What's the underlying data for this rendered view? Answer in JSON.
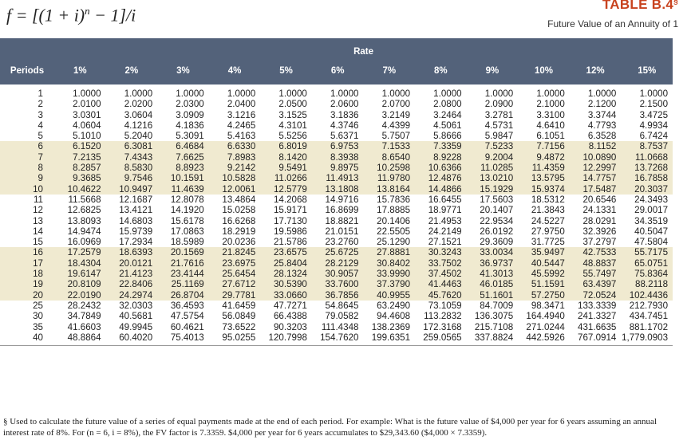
{
  "formula": {
    "before": "f = [(1 + i)",
    "exponent": "n",
    "after": " − 1]/i"
  },
  "header": {
    "title": "TABLE B.4",
    "title_mark": "§",
    "subtitle": "Future Value of an Annuity of 1"
  },
  "table": {
    "group_label": "Rate",
    "columns": [
      "Periods",
      "1%",
      "2%",
      "3%",
      "4%",
      "5%",
      "6%",
      "7%",
      "8%",
      "9%",
      "10%",
      "12%",
      "15%"
    ],
    "rows": [
      [
        "1",
        "1.0000",
        "1.0000",
        "1.0000",
        "1.0000",
        "1.0000",
        "1.0000",
        "1.0000",
        "1.0000",
        "1.0000",
        "1.0000",
        "1.0000",
        "1.0000"
      ],
      [
        "2",
        "2.0100",
        "2.0200",
        "2.0300",
        "2.0400",
        "2.0500",
        "2.0600",
        "2.0700",
        "2.0800",
        "2.0900",
        "2.1000",
        "2.1200",
        "2.1500"
      ],
      [
        "3",
        "3.0301",
        "3.0604",
        "3.0909",
        "3.1216",
        "3.1525",
        "3.1836",
        "3.2149",
        "3.2464",
        "3.2781",
        "3.3100",
        "3.3744",
        "3.4725"
      ],
      [
        "4",
        "4.0604",
        "4.1216",
        "4.1836",
        "4.2465",
        "4.3101",
        "4.3746",
        "4.4399",
        "4.5061",
        "4.5731",
        "4.6410",
        "4.7793",
        "4.9934"
      ],
      [
        "5",
        "5.1010",
        "5.2040",
        "5.3091",
        "5.4163",
        "5.5256",
        "5.6371",
        "5.7507",
        "5.8666",
        "5.9847",
        "6.1051",
        "6.3528",
        "6.7424"
      ],
      [
        "6",
        "6.1520",
        "6.3081",
        "6.4684",
        "6.6330",
        "6.8019",
        "6.9753",
        "7.1533",
        "7.3359",
        "7.5233",
        "7.7156",
        "8.1152",
        "8.7537"
      ],
      [
        "7",
        "7.2135",
        "7.4343",
        "7.6625",
        "7.8983",
        "8.1420",
        "8.3938",
        "8.6540",
        "8.9228",
        "9.2004",
        "9.4872",
        "10.0890",
        "11.0668"
      ],
      [
        "8",
        "8.2857",
        "8.5830",
        "8.8923",
        "9.2142",
        "9.5491",
        "9.8975",
        "10.2598",
        "10.6366",
        "11.0285",
        "11.4359",
        "12.2997",
        "13.7268"
      ],
      [
        "9",
        "9.3685",
        "9.7546",
        "10.1591",
        "10.5828",
        "11.0266",
        "11.4913",
        "11.9780",
        "12.4876",
        "13.0210",
        "13.5795",
        "14.7757",
        "16.7858"
      ],
      [
        "10",
        "10.4622",
        "10.9497",
        "11.4639",
        "12.0061",
        "12.5779",
        "13.1808",
        "13.8164",
        "14.4866",
        "15.1929",
        "15.9374",
        "17.5487",
        "20.3037"
      ],
      [
        "11",
        "11.5668",
        "12.1687",
        "12.8078",
        "13.4864",
        "14.2068",
        "14.9716",
        "15.7836",
        "16.6455",
        "17.5603",
        "18.5312",
        "20.6546",
        "24.3493"
      ],
      [
        "12",
        "12.6825",
        "13.4121",
        "14.1920",
        "15.0258",
        "15.9171",
        "16.8699",
        "17.8885",
        "18.9771",
        "20.1407",
        "21.3843",
        "24.1331",
        "29.0017"
      ],
      [
        "13",
        "13.8093",
        "14.6803",
        "15.6178",
        "16.6268",
        "17.7130",
        "18.8821",
        "20.1406",
        "21.4953",
        "22.9534",
        "24.5227",
        "28.0291",
        "34.3519"
      ],
      [
        "14",
        "14.9474",
        "15.9739",
        "17.0863",
        "18.2919",
        "19.5986",
        "21.0151",
        "22.5505",
        "24.2149",
        "26.0192",
        "27.9750",
        "32.3926",
        "40.5047"
      ],
      [
        "15",
        "16.0969",
        "17.2934",
        "18.5989",
        "20.0236",
        "21.5786",
        "23.2760",
        "25.1290",
        "27.1521",
        "29.3609",
        "31.7725",
        "37.2797",
        "47.5804"
      ],
      [
        "16",
        "17.2579",
        "18.6393",
        "20.1569",
        "21.8245",
        "23.6575",
        "25.6725",
        "27.8881",
        "30.3243",
        "33.0034",
        "35.9497",
        "42.7533",
        "55.7175"
      ],
      [
        "17",
        "18.4304",
        "20.0121",
        "21.7616",
        "23.6975",
        "25.8404",
        "28.2129",
        "30.8402",
        "33.7502",
        "36.9737",
        "40.5447",
        "48.8837",
        "65.0751"
      ],
      [
        "18",
        "19.6147",
        "21.4123",
        "23.4144",
        "25.6454",
        "28.1324",
        "30.9057",
        "33.9990",
        "37.4502",
        "41.3013",
        "45.5992",
        "55.7497",
        "75.8364"
      ],
      [
        "19",
        "20.8109",
        "22.8406",
        "25.1169",
        "27.6712",
        "30.5390",
        "33.7600",
        "37.3790",
        "41.4463",
        "46.0185",
        "51.1591",
        "63.4397",
        "88.2118"
      ],
      [
        "20",
        "22.0190",
        "24.2974",
        "26.8704",
        "29.7781",
        "33.0660",
        "36.7856",
        "40.9955",
        "45.7620",
        "51.1601",
        "57.2750",
        "72.0524",
        "102.4436"
      ],
      [
        "25",
        "28.2432",
        "32.0303",
        "36.4593",
        "41.6459",
        "47.7271",
        "54.8645",
        "63.2490",
        "73.1059",
        "84.7009",
        "98.3471",
        "133.3339",
        "212.7930"
      ],
      [
        "30",
        "34.7849",
        "40.5681",
        "47.5754",
        "56.0849",
        "66.4388",
        "79.0582",
        "94.4608",
        "113.2832",
        "136.3075",
        "164.4940",
        "241.3327",
        "434.7451"
      ],
      [
        "35",
        "41.6603",
        "49.9945",
        "60.4621",
        "73.6522",
        "90.3203",
        "111.4348",
        "138.2369",
        "172.3168",
        "215.7108",
        "271.0244",
        "431.6635",
        "881.1702"
      ],
      [
        "40",
        "48.8864",
        "60.4020",
        "75.4013",
        "95.0255",
        "120.7998",
        "154.7620",
        "199.6351",
        "259.0565",
        "337.8824",
        "442.5926",
        "767.0914",
        "1,779.0903"
      ]
    ]
  },
  "footnote": "§ Used to calculate the future value of a series of equal payments made at the end of each period. For example: What is the future value of $4,000 per year for 6 years assuming an annual interest rate of 8%. For (n = 6, i = 8%), the FV factor is 7.3359. $4,000 per year for 6 years accumulates to $29,343.60 ($4,000 × 7.3359)."
}
